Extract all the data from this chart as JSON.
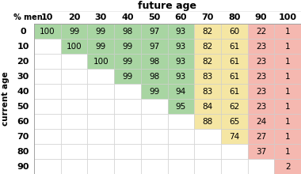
{
  "title": "future age",
  "col_label": "% men",
  "row_label": "current age",
  "future_ages": [
    "10",
    "20",
    "30",
    "40",
    "50",
    "60",
    "70",
    "80",
    "90",
    "100"
  ],
  "current_ages": [
    "0",
    "10",
    "20",
    "30",
    "40",
    "50",
    "60",
    "70",
    "80",
    "90"
  ],
  "values": [
    [
      100,
      99,
      99,
      98,
      97,
      93,
      82,
      60,
      22,
      1
    ],
    [
      null,
      100,
      99,
      99,
      97,
      93,
      82,
      61,
      23,
      1
    ],
    [
      null,
      null,
      100,
      99,
      98,
      93,
      82,
      61,
      23,
      1
    ],
    [
      null,
      null,
      null,
      99,
      98,
      93,
      83,
      61,
      23,
      1
    ],
    [
      null,
      null,
      null,
      null,
      99,
      94,
      83,
      61,
      23,
      1
    ],
    [
      null,
      null,
      null,
      null,
      null,
      95,
      84,
      62,
      23,
      1
    ],
    [
      null,
      null,
      null,
      null,
      null,
      null,
      88,
      65,
      24,
      1
    ],
    [
      null,
      null,
      null,
      null,
      null,
      null,
      null,
      74,
      27,
      1
    ],
    [
      null,
      null,
      null,
      null,
      null,
      null,
      null,
      null,
      37,
      1
    ],
    [
      null,
      null,
      null,
      null,
      null,
      null,
      null,
      null,
      null,
      2
    ]
  ],
  "color_green": "#a8d5a2",
  "color_yellow": "#f5e6a3",
  "color_red": "#f5b8b0",
  "color_white": "#ffffff",
  "title_fontsize": 9,
  "cell_fontsize": 7.5,
  "header_fontsize": 8,
  "rowlabel_fontsize": 7.5
}
